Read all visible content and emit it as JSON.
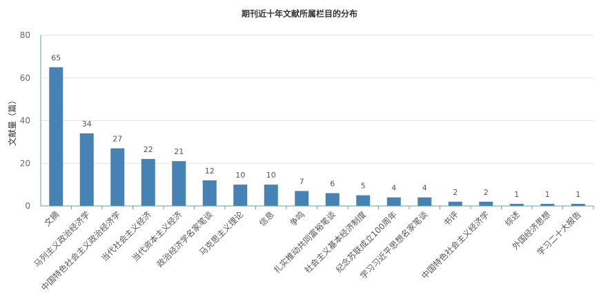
{
  "chart_data": {
    "type": "bar",
    "title": "期刊近十年文献所属栏目的分布",
    "xlabel": "",
    "ylabel": "文献量（篇）",
    "ylim": [
      0,
      80
    ],
    "yticks": [
      0,
      20,
      40,
      60,
      80
    ],
    "grid": true,
    "categories": [
      "文摘",
      "马列主义政治经济学",
      "中国特色社会主义政治经济学",
      "当代社会主义经济",
      "当代资本主义经济",
      "政治经济学名家笔谈",
      "马克思主义理论",
      "信息",
      "争鸣",
      "扎实推动共同富裕笔谈",
      "社会主义基本经济制度",
      "纪念苏联成立100周年",
      "学习习近平思想名家笔谈",
      "书评",
      "中国特色社会主义经济学",
      "综述",
      "外国经济思想",
      "学习二十大报告"
    ],
    "values": [
      65,
      34,
      27,
      22,
      21,
      12,
      10,
      10,
      7,
      6,
      5,
      4,
      4,
      2,
      2,
      1,
      1,
      1
    ],
    "colors": {
      "bar": "#4682b4",
      "axis": "#5ba3a0",
      "grid": "#e2e2e2"
    }
  }
}
